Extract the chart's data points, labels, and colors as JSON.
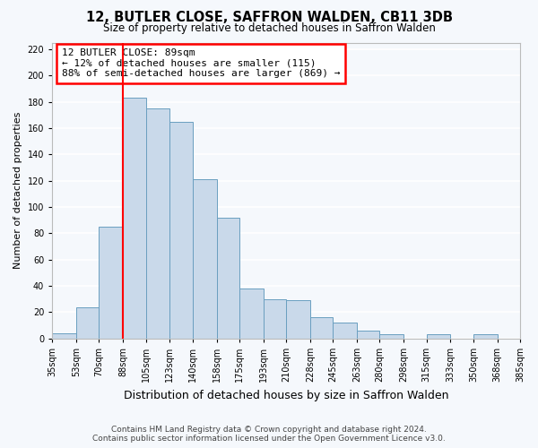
{
  "title": "12, BUTLER CLOSE, SAFFRON WALDEN, CB11 3DB",
  "subtitle": "Size of property relative to detached houses in Saffron Walden",
  "xlabel": "Distribution of detached houses by size in Saffron Walden",
  "ylabel": "Number of detached properties",
  "bin_edges": [
    35,
    53,
    70,
    88,
    105,
    123,
    140,
    158,
    175,
    193,
    210,
    228,
    245,
    263,
    280,
    298,
    315,
    333,
    350,
    368,
    385
  ],
  "bar_heights": [
    4,
    24,
    85,
    183,
    175,
    165,
    121,
    92,
    38,
    30,
    29,
    16,
    12,
    6,
    3,
    0,
    3,
    0,
    3
  ],
  "bar_color": "#c9d9ea",
  "bar_edgecolor": "#6a9fc0",
  "property_line_x": 88,
  "property_line_color": "red",
  "annotation_title": "12 BUTLER CLOSE: 89sqm",
  "annotation_line1": "← 12% of detached houses are smaller (115)",
  "annotation_line2": "88% of semi-detached houses are larger (869) →",
  "annotation_box_edgecolor": "red",
  "annotation_box_facecolor": "white",
  "ylim": [
    0,
    225
  ],
  "yticks": [
    0,
    20,
    40,
    60,
    80,
    100,
    120,
    140,
    160,
    180,
    200,
    220
  ],
  "tick_labels": [
    "35sqm",
    "53sqm",
    "70sqm",
    "88sqm",
    "105sqm",
    "123sqm",
    "140sqm",
    "158sqm",
    "175sqm",
    "193sqm",
    "210sqm",
    "228sqm",
    "245sqm",
    "263sqm",
    "280sqm",
    "298sqm",
    "315sqm",
    "333sqm",
    "350sqm",
    "368sqm",
    "385sqm"
  ],
  "footer_line1": "Contains HM Land Registry data © Crown copyright and database right 2024.",
  "footer_line2": "Contains public sector information licensed under the Open Government Licence v3.0.",
  "plot_bg_color": "#f5f8fc",
  "fig_bg_color": "#f5f8fc",
  "grid_color": "white",
  "title_fontsize": 10.5,
  "subtitle_fontsize": 8.5,
  "xlabel_fontsize": 9,
  "ylabel_fontsize": 8,
  "tick_fontsize": 7,
  "annotation_fontsize": 8,
  "footer_fontsize": 6.5
}
